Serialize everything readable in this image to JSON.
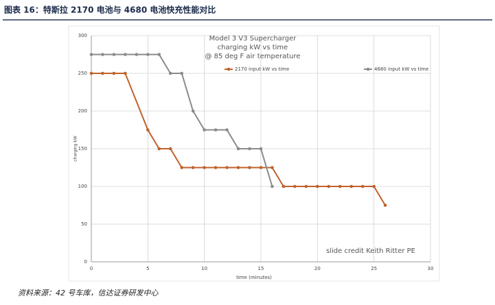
{
  "header": {
    "title": "图表 16：特斯拉 2170 电池与 4680 电池快充性能对比"
  },
  "chart_data": {
    "type": "line",
    "title": [
      "Model 3 V3 Supercharger",
      "charging kW vs time",
      "@ 85 deg F air temperature"
    ],
    "x_label": "time (minutes)",
    "y_label": "charging kW",
    "annotation": "slide credit Keith Ritter PE",
    "xlim": [
      0,
      30
    ],
    "xticks": [
      0,
      5,
      10,
      15,
      20,
      25,
      30
    ],
    "ylim": [
      0,
      300
    ],
    "yticks": [
      0,
      50,
      100,
      150,
      200,
      250,
      300
    ],
    "grid": true,
    "legend": "top",
    "series": [
      {
        "name": "2170 input kW vs time",
        "color": "#c0612b",
        "x": [
          0,
          1,
          2,
          3,
          5,
          6,
          7,
          8,
          9,
          10,
          11,
          12,
          13,
          14,
          15,
          16,
          17,
          18,
          19,
          20,
          21,
          22,
          23,
          24,
          25,
          26
        ],
        "values": [
          250,
          250,
          250,
          250,
          175,
          150,
          150,
          125,
          125,
          125,
          125,
          125,
          125,
          125,
          125,
          125,
          100,
          100,
          100,
          100,
          100,
          100,
          100,
          100,
          100,
          75
        ]
      },
      {
        "name": "4680 input kW vs time",
        "color": "#8a8a8a",
        "x": [
          0,
          1,
          2,
          3,
          4,
          5,
          6,
          7,
          8,
          9,
          10,
          11,
          12,
          13,
          14,
          15,
          16
        ],
        "values": [
          275,
          275,
          275,
          275,
          275,
          275,
          275,
          250,
          250,
          200,
          175,
          175,
          175,
          150,
          150,
          150,
          100
        ]
      }
    ]
  },
  "source": "资料来源：42 号车库，信达证券研发中心"
}
